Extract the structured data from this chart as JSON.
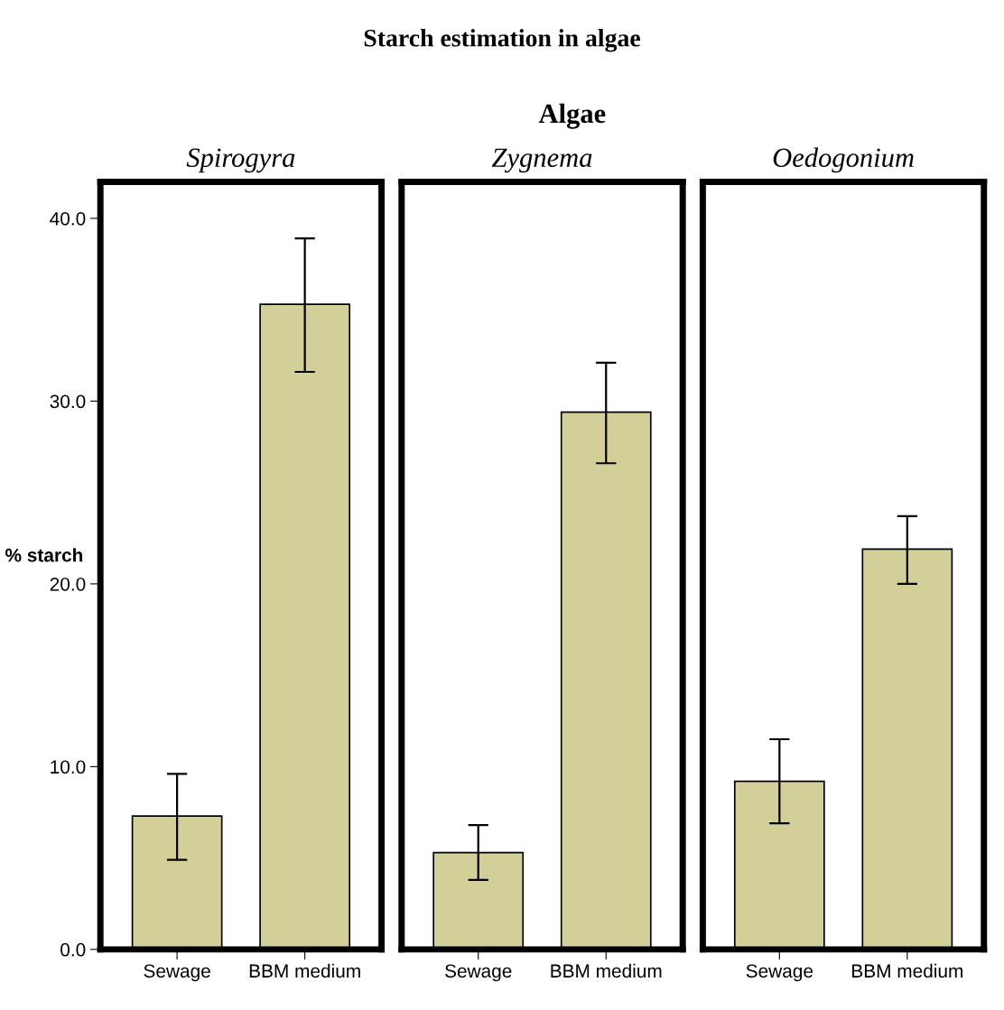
{
  "chart_data": [
    {
      "type": "bar",
      "title": "Spirogyra",
      "ylabel": "% starch",
      "annotations": [
        "Starch estimation in algae",
        "Algae"
      ],
      "categories": [
        "Sewage",
        "BBM medium"
      ],
      "values": [
        7.3,
        35.3
      ],
      "errors": [
        [
          4.9,
          9.6
        ],
        [
          31.6,
          38.9
        ]
      ],
      "color": "#d3cf98",
      "ylim": [
        0,
        42
      ],
      "yticks": [
        {
          "value": 0,
          "label": "0.0"
        },
        {
          "value": 10,
          "label": "10.0"
        },
        {
          "value": 20,
          "label": "20.0"
        },
        {
          "value": 30,
          "label": "30.0"
        },
        {
          "value": 40,
          "label": "40.0"
        }
      ]
    },
    {
      "type": "bar",
      "title": "Zygnema",
      "categories": [
        "Sewage",
        "BBM medium"
      ],
      "values": [
        5.3,
        29.4
      ],
      "errors": [
        [
          3.8,
          6.8
        ],
        [
          26.6,
          32.1
        ]
      ],
      "color": "#d3cf98",
      "ylim": [
        0,
        42
      ],
      "tick_labels": "x"
    },
    {
      "type": "bar",
      "title": "Oedogonium",
      "categories": [
        "Sewage",
        "BBM medium"
      ],
      "values": [
        9.2,
        21.9
      ],
      "errors": [
        [
          6.9,
          11.5
        ],
        [
          20.0,
          23.7
        ]
      ],
      "color": "#d3cf98",
      "ylim": [
        0,
        42
      ],
      "tick_labels": "x"
    }
  ]
}
